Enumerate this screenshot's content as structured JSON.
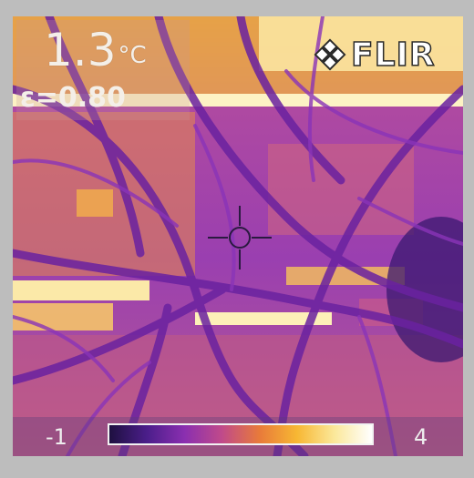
{
  "overlay": {
    "temperature_value": "1.3",
    "temperature_unit": "°C",
    "emissivity": "ε=0.80",
    "logo_text": "FLIR"
  },
  "scale": {
    "min_label": "-1",
    "max_label": "4",
    "gradient_colors": [
      "#1e1040",
      "#4b1e8a",
      "#8a2fb0",
      "#c04a8a",
      "#e87a3a",
      "#f7b733",
      "#fbe89a",
      "#ffffff"
    ]
  },
  "palette": {
    "background": "#9a3fb0",
    "hot": "#f5a93a",
    "warm": "#e06a78",
    "cool": "#7a2ca8",
    "cold": "#3a1870",
    "highlight": "#fdf0b0"
  }
}
